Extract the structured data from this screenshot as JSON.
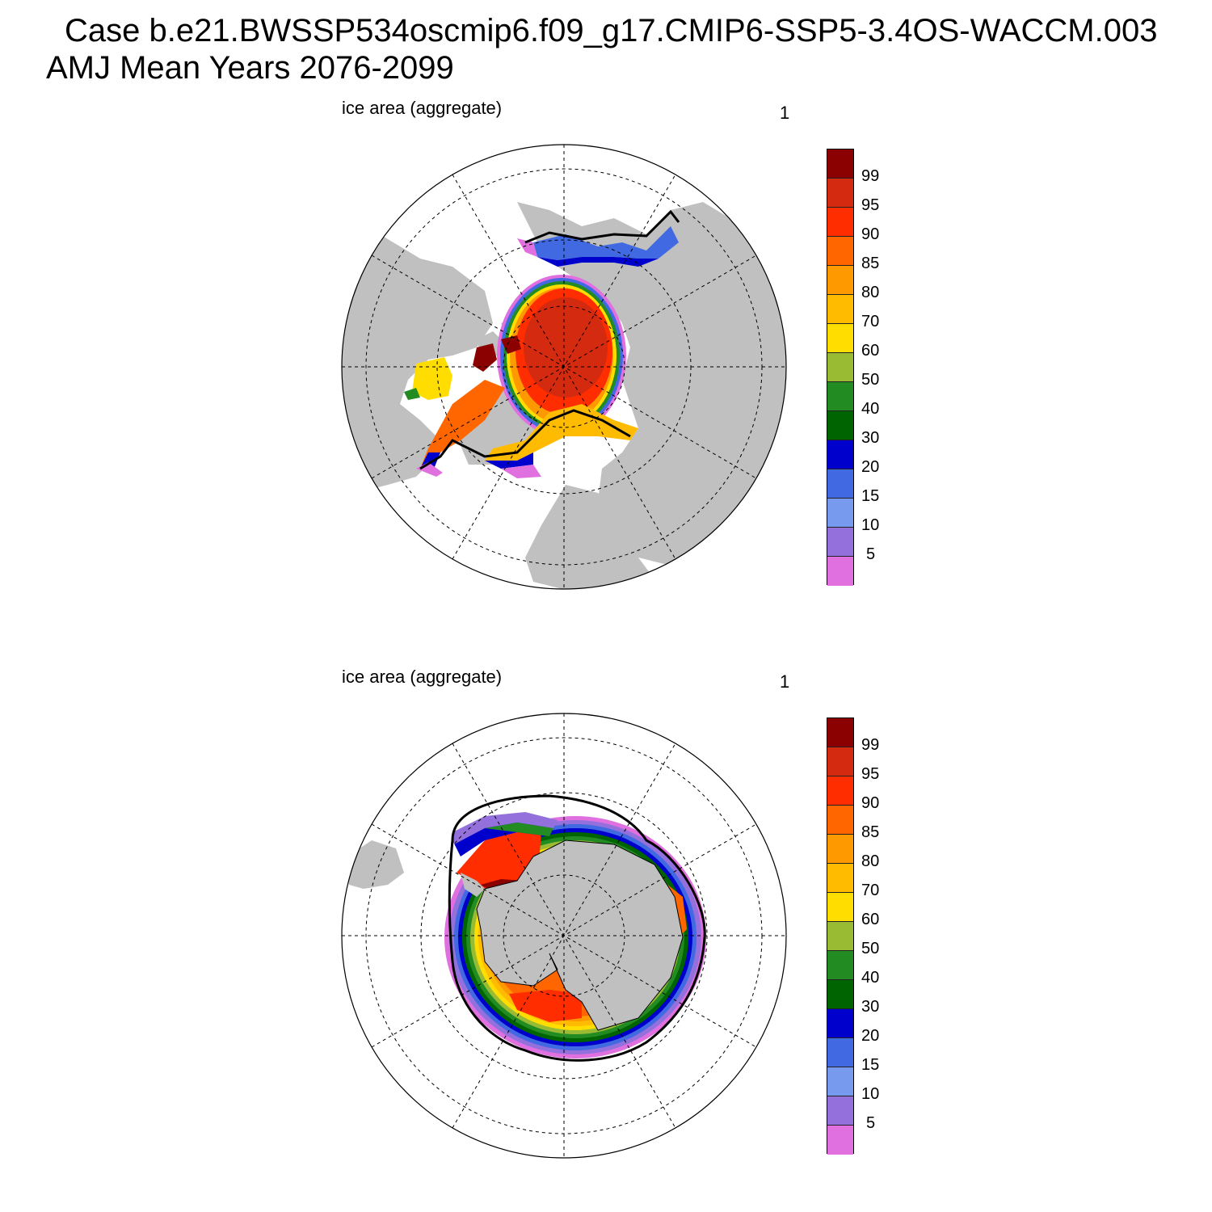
{
  "title": {
    "line1": "Case b.e21.BWSSP534oscmip6.f09_g17.CMIP6-SSP5-3.4OS-WACCM.003",
    "line2": "AMJ Mean   Years 2076-2099"
  },
  "panels": [
    {
      "id": "north",
      "hemisphere": "Northern",
      "subtitle": "ice area  (aggregate)",
      "units": "1"
    },
    {
      "id": "south",
      "hemisphere": "Southern",
      "subtitle": "ice area  (aggregate)",
      "units": "1"
    }
  ],
  "colorbar": {
    "labels": [
      "99",
      "95",
      "90",
      "85",
      "80",
      "70",
      "60",
      "50",
      "40",
      "30",
      "20",
      "15",
      "10",
      "5"
    ],
    "colors": [
      "#8b0000",
      "#d42a10",
      "#ff2d00",
      "#ff6600",
      "#ff9900",
      "#ffbb00",
      "#ffdd00",
      "#99bb33",
      "#228b22",
      "#006400",
      "#0000cd",
      "#4169e1",
      "#7799ee",
      "#9370db",
      "#e070e0"
    ]
  },
  "colors": {
    "land": "#c0c0c0",
    "ocean": "#ffffff",
    "contour": "#000000"
  }
}
